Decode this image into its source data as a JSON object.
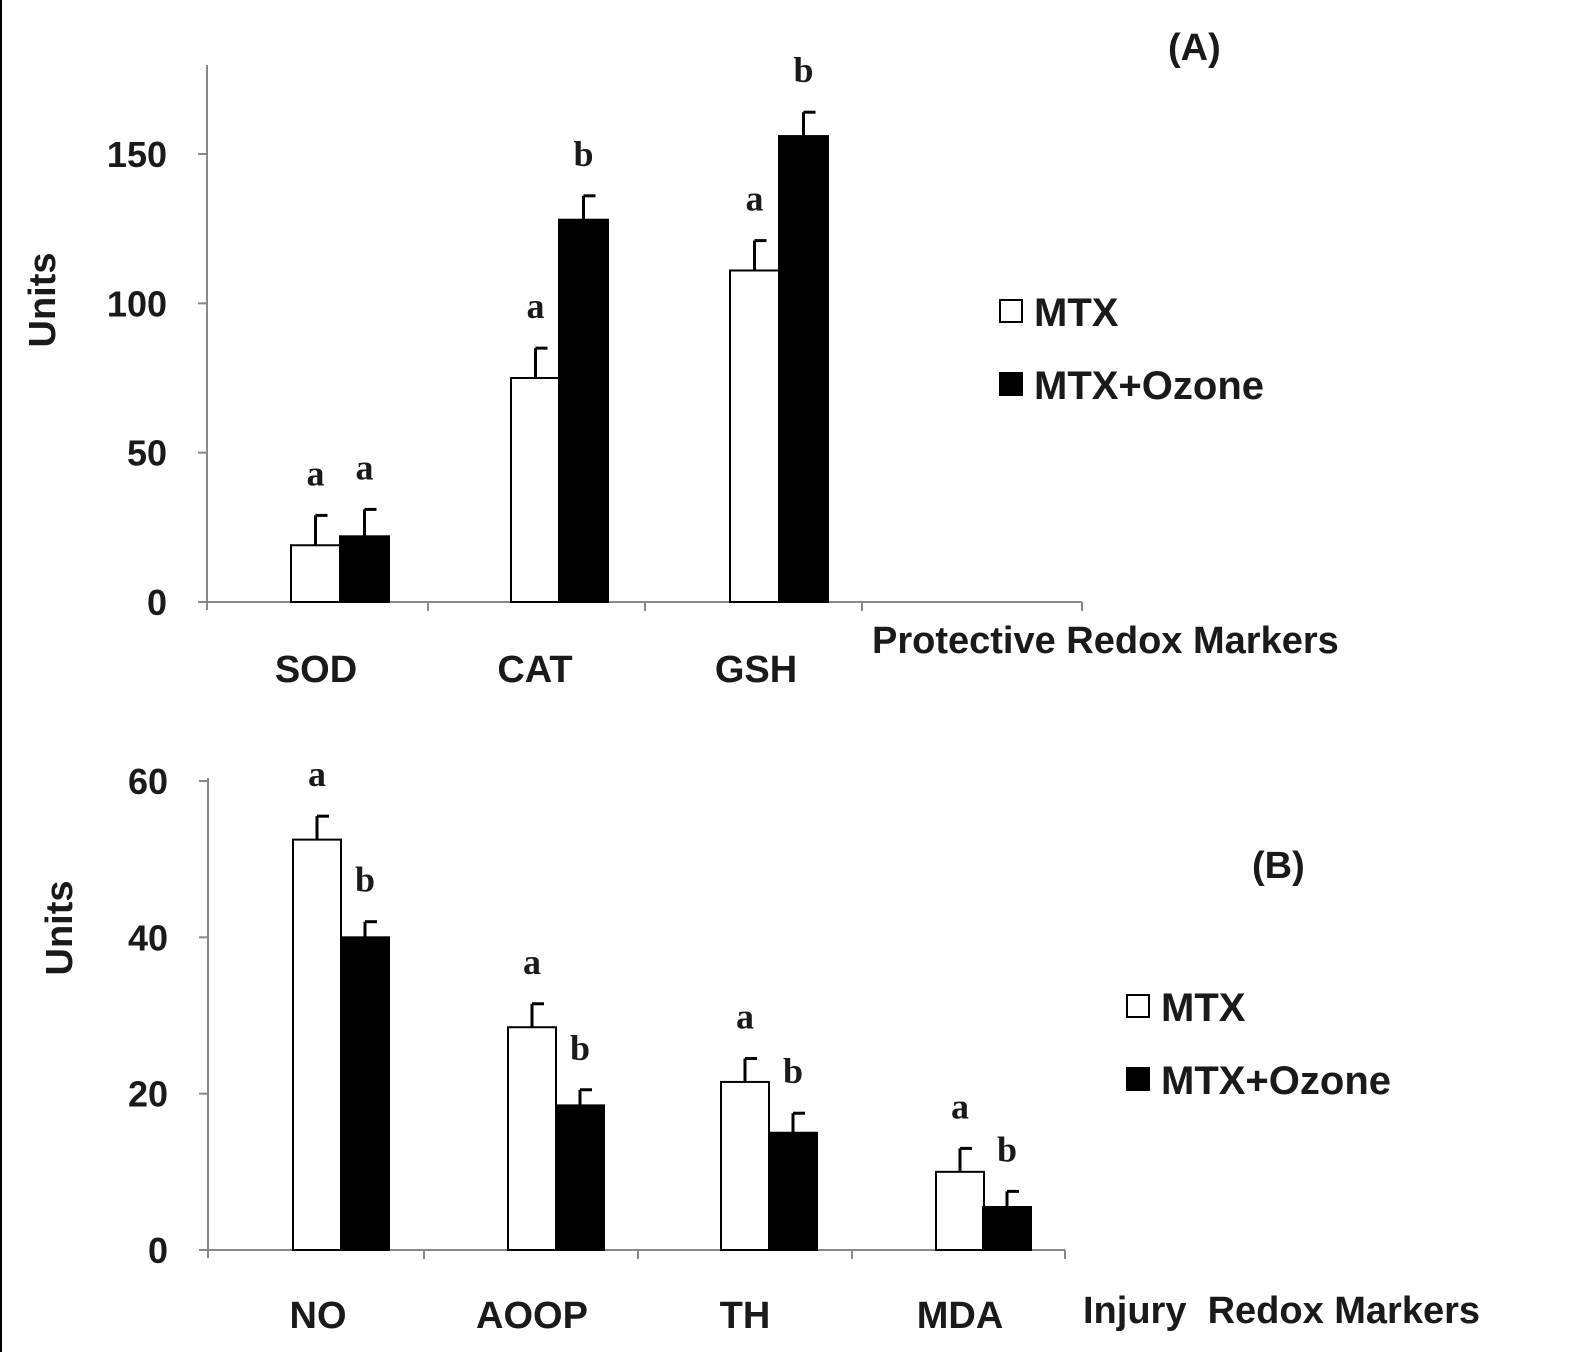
{
  "chart_data": [
    {
      "type": "bar",
      "panel_label": "(A)",
      "ylabel": "Units",
      "xlabel": "Protective Redox Markers",
      "categories": [
        "SOD",
        "CAT",
        "GSH"
      ],
      "yticks": [
        "0",
        "50",
        "100",
        "150"
      ],
      "ylim": [
        0,
        180
      ],
      "legend_position": "right",
      "series": [
        {
          "name": "MTX",
          "color": "#ffffff",
          "values": [
            19,
            75,
            111
          ],
          "errors": [
            10,
            10,
            10
          ],
          "sig": [
            "a",
            "a",
            "a"
          ]
        },
        {
          "name": "MTX+Ozone",
          "color": "#000000",
          "values": [
            22,
            128,
            156
          ],
          "errors": [
            9,
            8,
            8
          ],
          "sig": [
            "a",
            "b",
            "b"
          ]
        }
      ]
    },
    {
      "type": "bar",
      "panel_label": "(B)",
      "ylabel": "Units",
      "xlabel": "Injury  Redox Markers",
      "categories": [
        "NO",
        "AOOP",
        "TH",
        "MDA"
      ],
      "yticks": [
        "0",
        "20",
        "40",
        "60"
      ],
      "ylim": [
        0,
        60
      ],
      "legend_position": "right",
      "series": [
        {
          "name": "MTX",
          "color": "#ffffff",
          "values": [
            52.5,
            28.5,
            21.5,
            10
          ],
          "errors": [
            3,
            3,
            3,
            3
          ],
          "sig": [
            "a",
            "a",
            "a",
            "a"
          ]
        },
        {
          "name": "MTX+Ozone",
          "color": "#000000",
          "values": [
            40,
            18.5,
            15,
            5.5
          ],
          "errors": [
            2,
            2,
            2.5,
            2
          ],
          "sig": [
            "b",
            "b",
            "b",
            "b"
          ]
        }
      ]
    }
  ]
}
